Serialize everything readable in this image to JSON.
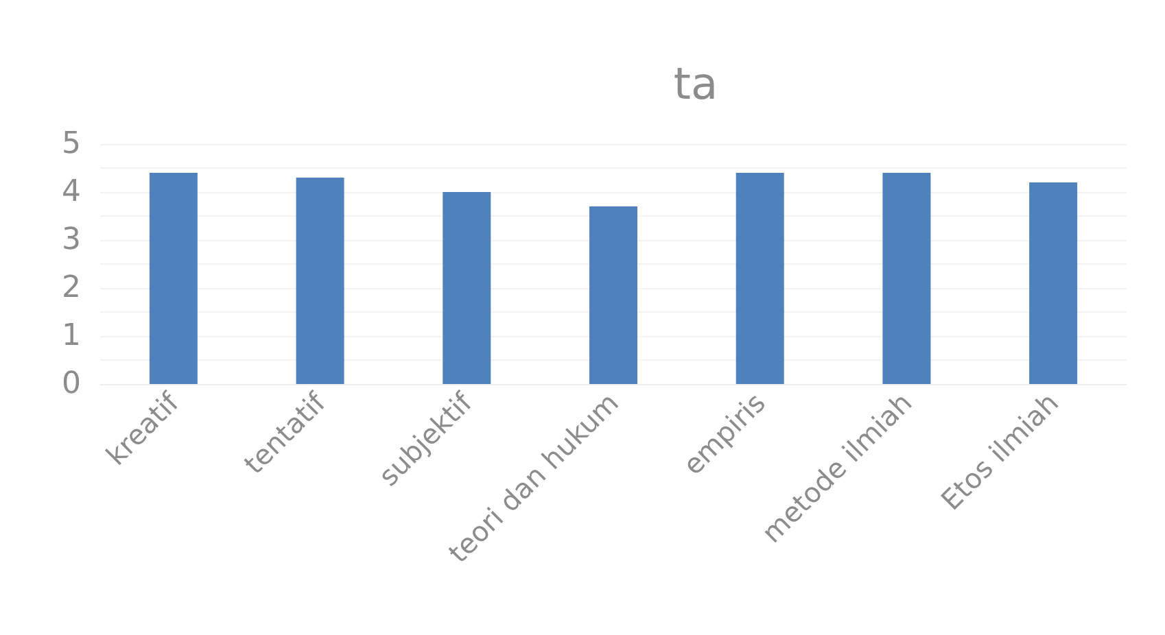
{
  "chart_data": {
    "type": "bar",
    "title": "ta",
    "categories": [
      "kreatif",
      "tentatif",
      "subjektif",
      "teori dan hukum",
      "empiris",
      "metode ilmiah",
      "Etos ilmiah"
    ],
    "values": [
      4.4,
      4.3,
      4.0,
      3.7,
      4.4,
      4.4,
      4.2
    ],
    "color": "#4f81bd",
    "ylim": [
      0,
      5
    ],
    "yticks": [
      0,
      {
        "value": 0.5,
        "label": null
      },
      1,
      {
        "value": 1.5,
        "label": null
      },
      2,
      {
        "value": 2.5,
        "label": null
      },
      3,
      {
        "value": 3.5,
        "label": null
      },
      4,
      {
        "value": 4.5,
        "label": null
      },
      5
    ],
    "grid": true
  }
}
